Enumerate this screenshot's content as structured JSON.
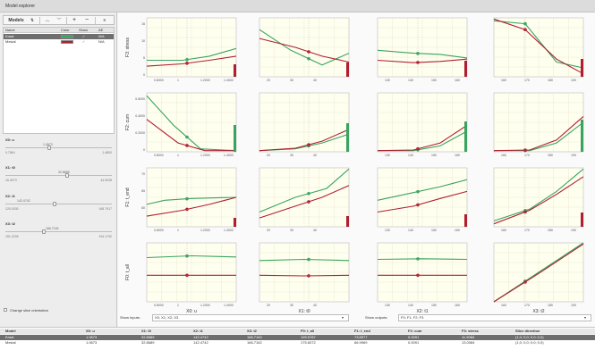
{
  "window": {
    "title": "Model explorer"
  },
  "toolbar": {
    "models_label": "Models",
    "sort_icon": "sort-icon",
    "up_icon": "chevron-up-icon",
    "down_icon": "chevron-down-icon",
    "add_label": "+",
    "remove_label": "−",
    "menu_icon": "hamburger-icon"
  },
  "models": {
    "headers": [
      "Name",
      "Color",
      "Show",
      "AE"
    ],
    "rows": [
      {
        "name": "Kraal",
        "color": "#3aa35f",
        "show": "✓",
        "ae": "N/A"
      },
      {
        "name": "Mesial",
        "color": "#b01e30",
        "show": "✓",
        "ae": "N/A"
      }
    ]
  },
  "sliders": [
    {
      "name": "X0: u",
      "value": "1.0673",
      "min": "0.7864",
      "max": "1.4800",
      "pos": 0.4
    },
    {
      "name": "X1: t0",
      "value": "32.8689",
      "min": "16.4073",
      "max": "44.9028",
      "pos": 0.57
    },
    {
      "name": "X2: t1",
      "value": "142.4742",
      "min": "120.0030",
      "max": "168.7917",
      "pos": 0.46
    },
    {
      "name": "X3: t2",
      "value": "166.7162",
      "min": "151.2205",
      "max": "194.1792",
      "pos": 0.36
    }
  ],
  "change_orientation": {
    "label": "Change slice orientation",
    "checked": false
  },
  "grid": {
    "y_titles": [
      "F3: stress",
      "F2: cum",
      "F1: t_end",
      "F0: t_all"
    ],
    "x_titles": [
      "X0: u",
      "X1: t0",
      "X2: t1",
      "X3: t2"
    ],
    "x_ticks": [
      [
        "0.8000",
        "1",
        "1.2000",
        "1.4000"
      ],
      [
        "20",
        "30",
        "40",
        ""
      ],
      [
        "130",
        "140",
        "150",
        "160"
      ],
      [
        "160",
        "170",
        "180",
        "190"
      ]
    ],
    "y_ticks": [
      [
        "15",
        "10",
        "5",
        "0"
      ],
      [
        "0.6000",
        "0.4000",
        "0.2000",
        "0"
      ],
      [
        "70",
        "65",
        "60",
        ""
      ],
      [
        "",
        "",
        "",
        ""
      ]
    ],
    "colors": {
      "green": "#3aa35f",
      "red": "#b01e30"
    }
  },
  "controls": {
    "show_inputs_label": "Show inputs:",
    "show_inputs_value": "X0; X1; X2; X3",
    "show_outputs_label": "Show outputs:",
    "show_outputs_value": "F0; F1; F2; F3"
  },
  "results": {
    "headers": [
      "Model",
      "X0: u",
      "X1: t0",
      "X2: t1",
      "X3: t2",
      "F0: t_all",
      "F1: t_end",
      "F2: cum",
      "F3: stress",
      "Slice direction"
    ],
    "rows": [
      [
        "Kraal",
        "1.0673",
        "32.8689",
        "142.4742",
        "166.7162",
        "199.9787",
        "73.8977",
        "0.0091",
        "11.9084",
        "(1,0; 0,0; 0,0; 0,0)"
      ],
      [
        "Mesial",
        "1.0673",
        "32.8689",
        "142.4742",
        "166.7162",
        "175.6072",
        "66.9969",
        "0.0091",
        "13.0084",
        "(1,0; 0,0; 0,0; 0,0)"
      ]
    ]
  }
}
